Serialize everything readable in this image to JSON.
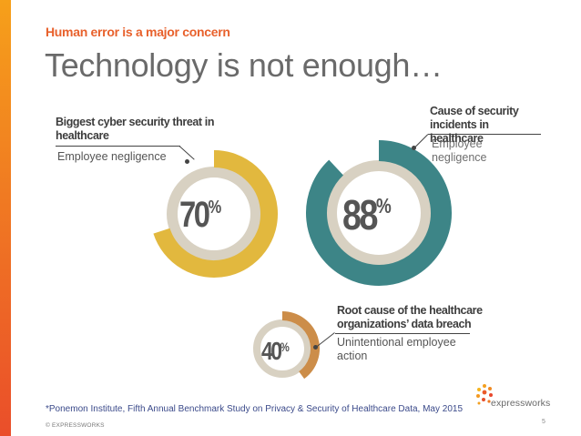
{
  "slide": {
    "kicker": "Human error is a major concern",
    "title": "Technology is not enough…",
    "footnote": "*Ponemon Institute, Fifth Annual Benchmark Study on Privacy & Security of Healthcare Data, May 2015",
    "copyright": "© EXPRESSWORKS",
    "page_number": "5",
    "logo_text": "expressworks"
  },
  "stats": [
    {
      "value": "70",
      "suffix": "%",
      "percent": 70,
      "color": "#e2b83e",
      "track_color": "#d8d1c2",
      "heading": "Biggest cyber security threat in healthcare",
      "caption": "Employee negligence"
    },
    {
      "value": "88",
      "suffix": "%",
      "percent": 88,
      "color": "#3d8587",
      "track_color": "#d8d1c2",
      "heading": "Cause of security incidents in healthcare",
      "caption": "Employee negligence"
    },
    {
      "value": "40",
      "suffix": "%",
      "percent": 40,
      "color": "#cc8d49",
      "track_color": "#d8d1c2",
      "heading": "Root cause of the healthcare organizations’ data breach",
      "caption": "Unintentional employee action"
    }
  ],
  "colors": {
    "accent": "#e8612c",
    "title": "#6a6a6a"
  }
}
